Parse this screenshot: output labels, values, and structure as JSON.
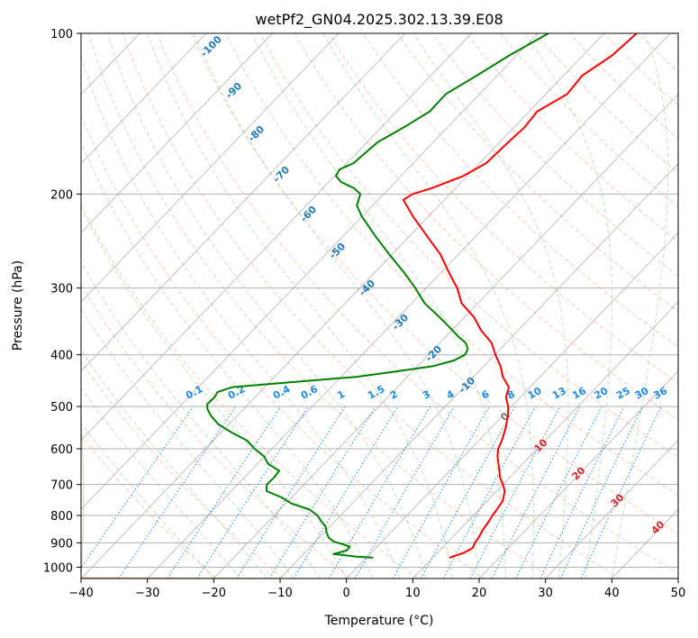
{
  "chart_data": {
    "type": "line",
    "title": "wetPf2_GN04.2025.302.13.39.E08",
    "xlabel": "Temperature (°C)",
    "ylabel": "Pressure (hPa)",
    "xlim": [
      -40,
      50
    ],
    "ylim": [
      1050,
      100
    ],
    "y_scale": "log",
    "skew": "skew-T log-P",
    "grid": true,
    "x_ticks": [
      -40,
      -30,
      -20,
      -10,
      0,
      10,
      20,
      30,
      40,
      50
    ],
    "y_ticks": [
      100,
      200,
      300,
      400,
      500,
      600,
      700,
      800,
      900,
      1000
    ],
    "colors": {
      "temperature": "#ff0000",
      "dewpoint": "#008000",
      "dry_adiabats": "#ff8a65",
      "moist_adiabats": "#66bb6a",
      "mixing_ratio": "#1e88e5",
      "isotherms": "#808080",
      "wet_bulb_potential_temperature": "#d2b48c"
    },
    "series": [
      {
        "role": "temperature",
        "pressure": [
          960,
          940,
          920,
          900,
          880,
          850,
          820,
          800,
          780,
          750,
          720,
          700,
          680,
          650,
          620,
          600,
          580,
          550,
          520,
          500,
          480,
          460,
          440,
          420,
          400,
          380,
          360,
          340,
          320,
          300,
          280,
          260,
          240,
          220,
          205,
          200,
          195,
          185,
          175,
          160,
          150,
          140,
          130,
          120,
          110,
          100
        ],
        "temp": [
          12.5,
          14.0,
          14.6,
          14.2,
          14.0,
          13.5,
          13.2,
          12.9,
          12.7,
          12.3,
          11.2,
          10.0,
          8.6,
          6.9,
          5.1,
          4.1,
          3.5,
          2.3,
          0.8,
          -0.5,
          -2.2,
          -3.2,
          -5.6,
          -7.5,
          -9.9,
          -12.2,
          -15.6,
          -18.6,
          -22.5,
          -25.3,
          -28.9,
          -32.6,
          -37.3,
          -42.4,
          -46.2,
          -45.6,
          -43.6,
          -40.6,
          -39.0,
          -38.7,
          -38.4,
          -38.8,
          -36.8,
          -37.2,
          -35.6,
          -35.1
        ]
      },
      {
        "role": "dewpoint",
        "pressure": [
          960,
          955,
          950,
          945,
          930,
          915,
          905,
          895,
          880,
          860,
          840,
          820,
          800,
          780,
          760,
          740,
          720,
          700,
          680,
          660,
          640,
          620,
          600,
          580,
          560,
          540,
          520,
          505,
          495,
          480,
          470,
          460,
          455,
          450,
          440,
          430,
          420,
          410,
          400,
          390,
          380,
          370,
          360,
          340,
          320,
          300,
          280,
          260,
          240,
          220,
          210,
          200,
          195,
          190,
          185,
          180,
          175,
          160,
          150,
          140,
          130,
          120,
          110,
          100
        ],
        "dewpoint": [
          1.0,
          -1.8,
          -3.5,
          -5.5,
          -4.0,
          -4.1,
          -5.6,
          -7.3,
          -8.6,
          -9.7,
          -10.6,
          -12.1,
          -13.5,
          -15.5,
          -19.1,
          -21.5,
          -24.7,
          -25.6,
          -25.5,
          -25.7,
          -28.4,
          -30.1,
          -32.6,
          -34.8,
          -38.3,
          -41.6,
          -44.0,
          -45.5,
          -46.2,
          -46.1,
          -46.4,
          -44.9,
          -40.6,
          -36.5,
          -27.7,
          -22.5,
          -17.6,
          -15.3,
          -14.5,
          -14.9,
          -16.1,
          -18.1,
          -19.9,
          -23.8,
          -28.1,
          -31.6,
          -35.7,
          -40.3,
          -45.1,
          -50.1,
          -52.4,
          -53.5,
          -55.3,
          -58.1,
          -59.8,
          -60.2,
          -59.0,
          -58.4,
          -56.6,
          -55.0,
          -55.1,
          -53.1,
          -51.1,
          -48.4
        ]
      }
    ],
    "isotherm_labels": [
      "-100",
      "-90",
      "-80",
      "-70",
      "-60",
      "-50",
      "-40",
      "-30",
      "-20",
      "-10",
      "0",
      "10",
      "20",
      "30",
      "40"
    ],
    "mixing_ratio_labels": [
      "0.1",
      "0.2",
      "0.4",
      "0.6",
      "1",
      "1.5",
      "2",
      "3",
      "4",
      "6",
      "8",
      "10",
      "13",
      "16",
      "20",
      "25",
      "30",
      "36"
    ]
  }
}
